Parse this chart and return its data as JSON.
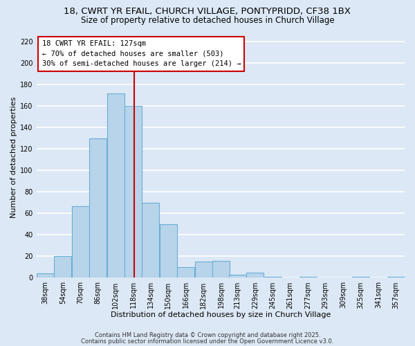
{
  "title_line1": "18, CWRT YR EFAIL, CHURCH VILLAGE, PONTYPRIDD, CF38 1BX",
  "title_line2": "Size of property relative to detached houses in Church Village",
  "xlabel": "Distribution of detached houses by size in Church Village",
  "ylabel": "Number of detached properties",
  "bar_values": [
    4,
    20,
    67,
    130,
    172,
    160,
    70,
    50,
    10,
    15,
    16,
    3,
    5,
    1,
    0,
    1,
    0,
    0,
    1,
    0,
    1
  ],
  "bar_labels": [
    "38sqm",
    "54sqm",
    "70sqm",
    "86sqm",
    "102sqm",
    "118sqm",
    "134sqm",
    "150sqm",
    "166sqm",
    "182sqm",
    "198sqm",
    "213sqm",
    "229sqm",
    "245sqm",
    "261sqm",
    "277sqm",
    "293sqm",
    "309sqm",
    "325sqm",
    "341sqm",
    "357sqm"
  ],
  "bin_left_edges": [
    38,
    54,
    70,
    86,
    102,
    118,
    134,
    150,
    166,
    182,
    198,
    213,
    229,
    245,
    261,
    277,
    293,
    309,
    325,
    341,
    357
  ],
  "bin_width": 16,
  "bar_color": "#b8d4ea",
  "bar_edge_color": "#6aaed6",
  "property_line_x": 127,
  "property_line_color": "#cc0000",
  "annotation_title": "18 CWRT YR EFAIL: 127sqm",
  "annotation_line1": "← 70% of detached houses are smaller (503)",
  "annotation_line2": "30% of semi-detached houses are larger (214) →",
  "annotation_box_facecolor": "#ffffff",
  "annotation_box_edgecolor": "#cc0000",
  "ylim_max": 225,
  "yticks": [
    0,
    20,
    40,
    60,
    80,
    100,
    120,
    140,
    160,
    180,
    200,
    220
  ],
  "background_color": "#dce8f5",
  "grid_color": "#ffffff",
  "footer_line1": "Contains HM Land Registry data © Crown copyright and database right 2025.",
  "footer_line2": "Contains public sector information licensed under the Open Government Licence v3.0.",
  "title_fontsize": 9.5,
  "subtitle_fontsize": 8.5,
  "axis_label_fontsize": 8,
  "tick_fontsize": 7,
  "annotation_fontsize": 7.5,
  "footer_fontsize": 6
}
